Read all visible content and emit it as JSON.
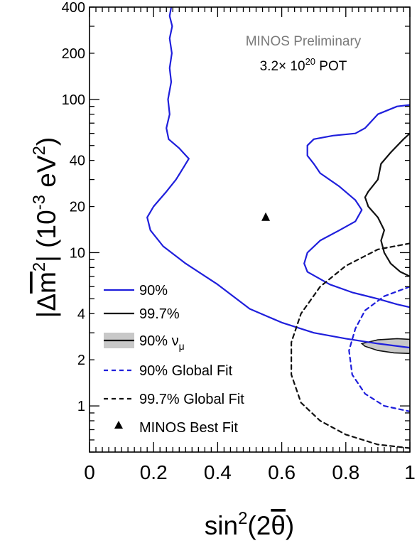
{
  "chart_data": {
    "type": "line",
    "x_scale": "linear",
    "y_scale": "log",
    "xlim": [
      0,
      1
    ],
    "ylim": [
      0.5,
      400
    ],
    "xticks": [
      {
        "value": 0,
        "label": "0"
      },
      {
        "value": 0.2,
        "label": "0.2"
      },
      {
        "value": 0.4,
        "label": "0.4"
      },
      {
        "value": 0.6,
        "label": "0.6"
      },
      {
        "value": 0.8,
        "label": "0.8"
      },
      {
        "value": 1,
        "label": "1"
      }
    ],
    "yticks": [
      {
        "value": 1,
        "label": "1"
      },
      {
        "value": 2,
        "label": "2"
      },
      {
        "value": 4,
        "label": "4"
      },
      {
        "value": 10,
        "label": "10"
      },
      {
        "value": 20,
        "label": "20"
      },
      {
        "value": 40,
        "label": "40"
      },
      {
        "value": 100,
        "label": "100"
      },
      {
        "value": 200,
        "label": "200"
      },
      {
        "value": 400,
        "label": "400"
      }
    ],
    "xlabel": {
      "base": "sin",
      "sup": "2",
      "paren_open": "(2",
      "theta": "θ",
      "paren_close": ")"
    },
    "ylabel": {
      "bar_open": "|Δ",
      "m": "m",
      "sup2": "2",
      "bar_close": "| (10",
      "sup_exp": "-3",
      "unit": " eV",
      "sup_unit": "2",
      "close": ")"
    },
    "annotation": {
      "line1": "MINOS Preliminary",
      "line2_prefix": "3.2",
      "line2_times": "×",
      "line2_base": " 10",
      "line2_sup": "20",
      "line2_suffix": " POT"
    },
    "series": [
      {
        "name": "90%",
        "color": "#1f1fdc",
        "dash": "solid",
        "segments": [
          [
            [
              0.255,
              400
            ],
            [
              0.25,
              350
            ],
            [
              0.258,
              300
            ],
            [
              0.25,
              250
            ],
            [
              0.257,
              200
            ],
            [
              0.25,
              160
            ],
            [
              0.255,
              130
            ],
            [
              0.245,
              100
            ],
            [
              0.25,
              80
            ],
            [
              0.24,
              65
            ],
            [
              0.247,
              55
            ],
            [
              0.28,
              48
            ],
            [
              0.31,
              41
            ],
            [
              0.29,
              35
            ],
            [
              0.27,
              30
            ],
            [
              0.24,
              25
            ],
            [
              0.2,
              20
            ],
            [
              0.18,
              17
            ],
            [
              0.19,
              14
            ],
            [
              0.23,
              11
            ],
            [
              0.3,
              8.5
            ],
            [
              0.4,
              6.2
            ],
            [
              0.5,
              4.3
            ],
            [
              0.6,
              3.5
            ],
            [
              0.7,
              3.0
            ],
            [
              0.8,
              2.75
            ],
            [
              0.9,
              2.55
            ],
            [
              1.0,
              2.4
            ]
          ],
          [
            [
              1.0,
              92
            ],
            [
              0.96,
              90
            ],
            [
              0.9,
              80
            ],
            [
              0.86,
              65
            ],
            [
              0.83,
              60
            ],
            [
              0.76,
              58
            ],
            [
              0.7,
              55
            ],
            [
              0.68,
              50
            ],
            [
              0.68,
              43
            ],
            [
              0.7,
              38
            ],
            [
              0.72,
              33
            ],
            [
              0.78,
              27
            ],
            [
              0.83,
              22
            ],
            [
              0.85,
              19
            ],
            [
              0.83,
              16
            ],
            [
              0.78,
              14
            ],
            [
              0.72,
              12
            ],
            [
              0.68,
              10
            ],
            [
              0.67,
              8.5
            ],
            [
              0.68,
              7.5
            ],
            [
              0.75,
              6.2
            ],
            [
              0.82,
              5.5
            ],
            [
              0.9,
              5.0
            ],
            [
              0.96,
              4.6
            ],
            [
              1.0,
              4.4
            ]
          ]
        ]
      },
      {
        "name": "99.7%",
        "color": "#111111",
        "dash": "solid",
        "segments": [
          [
            [
              1.0,
              60
            ],
            [
              0.98,
              55
            ],
            [
              0.94,
              45
            ],
            [
              0.91,
              38
            ],
            [
              0.9,
              30
            ],
            [
              0.87,
              25
            ],
            [
              0.86,
              23
            ],
            [
              0.87,
              20
            ],
            [
              0.9,
              17
            ],
            [
              0.92,
              14
            ],
            [
              0.91,
              12
            ],
            [
              0.92,
              10
            ],
            [
              0.94,
              8.5
            ],
            [
              0.97,
              7.5
            ],
            [
              1.0,
              7.0
            ]
          ]
        ]
      },
      {
        "name": "90% Global Fit",
        "color": "#1f1fdc",
        "dash": "dashed",
        "segments": [
          [
            [
              1.0,
              6.0
            ],
            [
              0.92,
              5.2
            ],
            [
              0.86,
              4.2
            ],
            [
              0.83,
              3.2
            ],
            [
              0.81,
              2.3
            ],
            [
              0.82,
              1.6
            ],
            [
              0.86,
              1.2
            ],
            [
              0.92,
              1.0
            ],
            [
              1.0,
              0.92
            ]
          ]
        ]
      },
      {
        "name": "99.7% Global Fit",
        "color": "#111111",
        "dash": "dashed",
        "segments": [
          [
            [
              1.0,
              11.5
            ],
            [
              0.9,
              10.5
            ],
            [
              0.8,
              8.2
            ],
            [
              0.72,
              6.0
            ],
            [
              0.66,
              4.0
            ],
            [
              0.63,
              2.6
            ],
            [
              0.63,
              1.6
            ],
            [
              0.66,
              1.05
            ],
            [
              0.72,
              0.8
            ],
            [
              0.8,
              0.65
            ],
            [
              0.9,
              0.56
            ],
            [
              1.0,
              0.53
            ]
          ]
        ]
      }
    ],
    "filled_region": {
      "name": "90% ν",
      "name_sub": "μ",
      "fill": "#c8c8c8",
      "stroke": "#111111",
      "polygon": [
        [
          0.85,
          2.55
        ],
        [
          0.9,
          2.7
        ],
        [
          0.96,
          2.75
        ],
        [
          1.0,
          2.72
        ],
        [
          1.0,
          2.2
        ],
        [
          0.95,
          2.22
        ],
        [
          0.9,
          2.3
        ],
        [
          0.86,
          2.45
        ]
      ]
    },
    "points": [
      {
        "name": "MINOS Best Fit",
        "x": 0.55,
        "y": 17,
        "marker": "triangle",
        "color": "#000000"
      }
    ],
    "legend": {
      "position": "lower-left",
      "entries": [
        {
          "label": "90%",
          "sub": "",
          "style": "blue-solid"
        },
        {
          "label": "99.7%",
          "sub": "",
          "style": "black-solid"
        },
        {
          "label": "90% ν",
          "sub": "μ",
          "style": "filled"
        },
        {
          "label": "90% Global Fit",
          "sub": "",
          "style": "blue-dashed"
        },
        {
          "label": "99.7% Global Fit",
          "sub": "",
          "style": "black-dashed"
        },
        {
          "label": "MINOS Best Fit",
          "sub": "",
          "style": "triangle"
        }
      ]
    }
  }
}
